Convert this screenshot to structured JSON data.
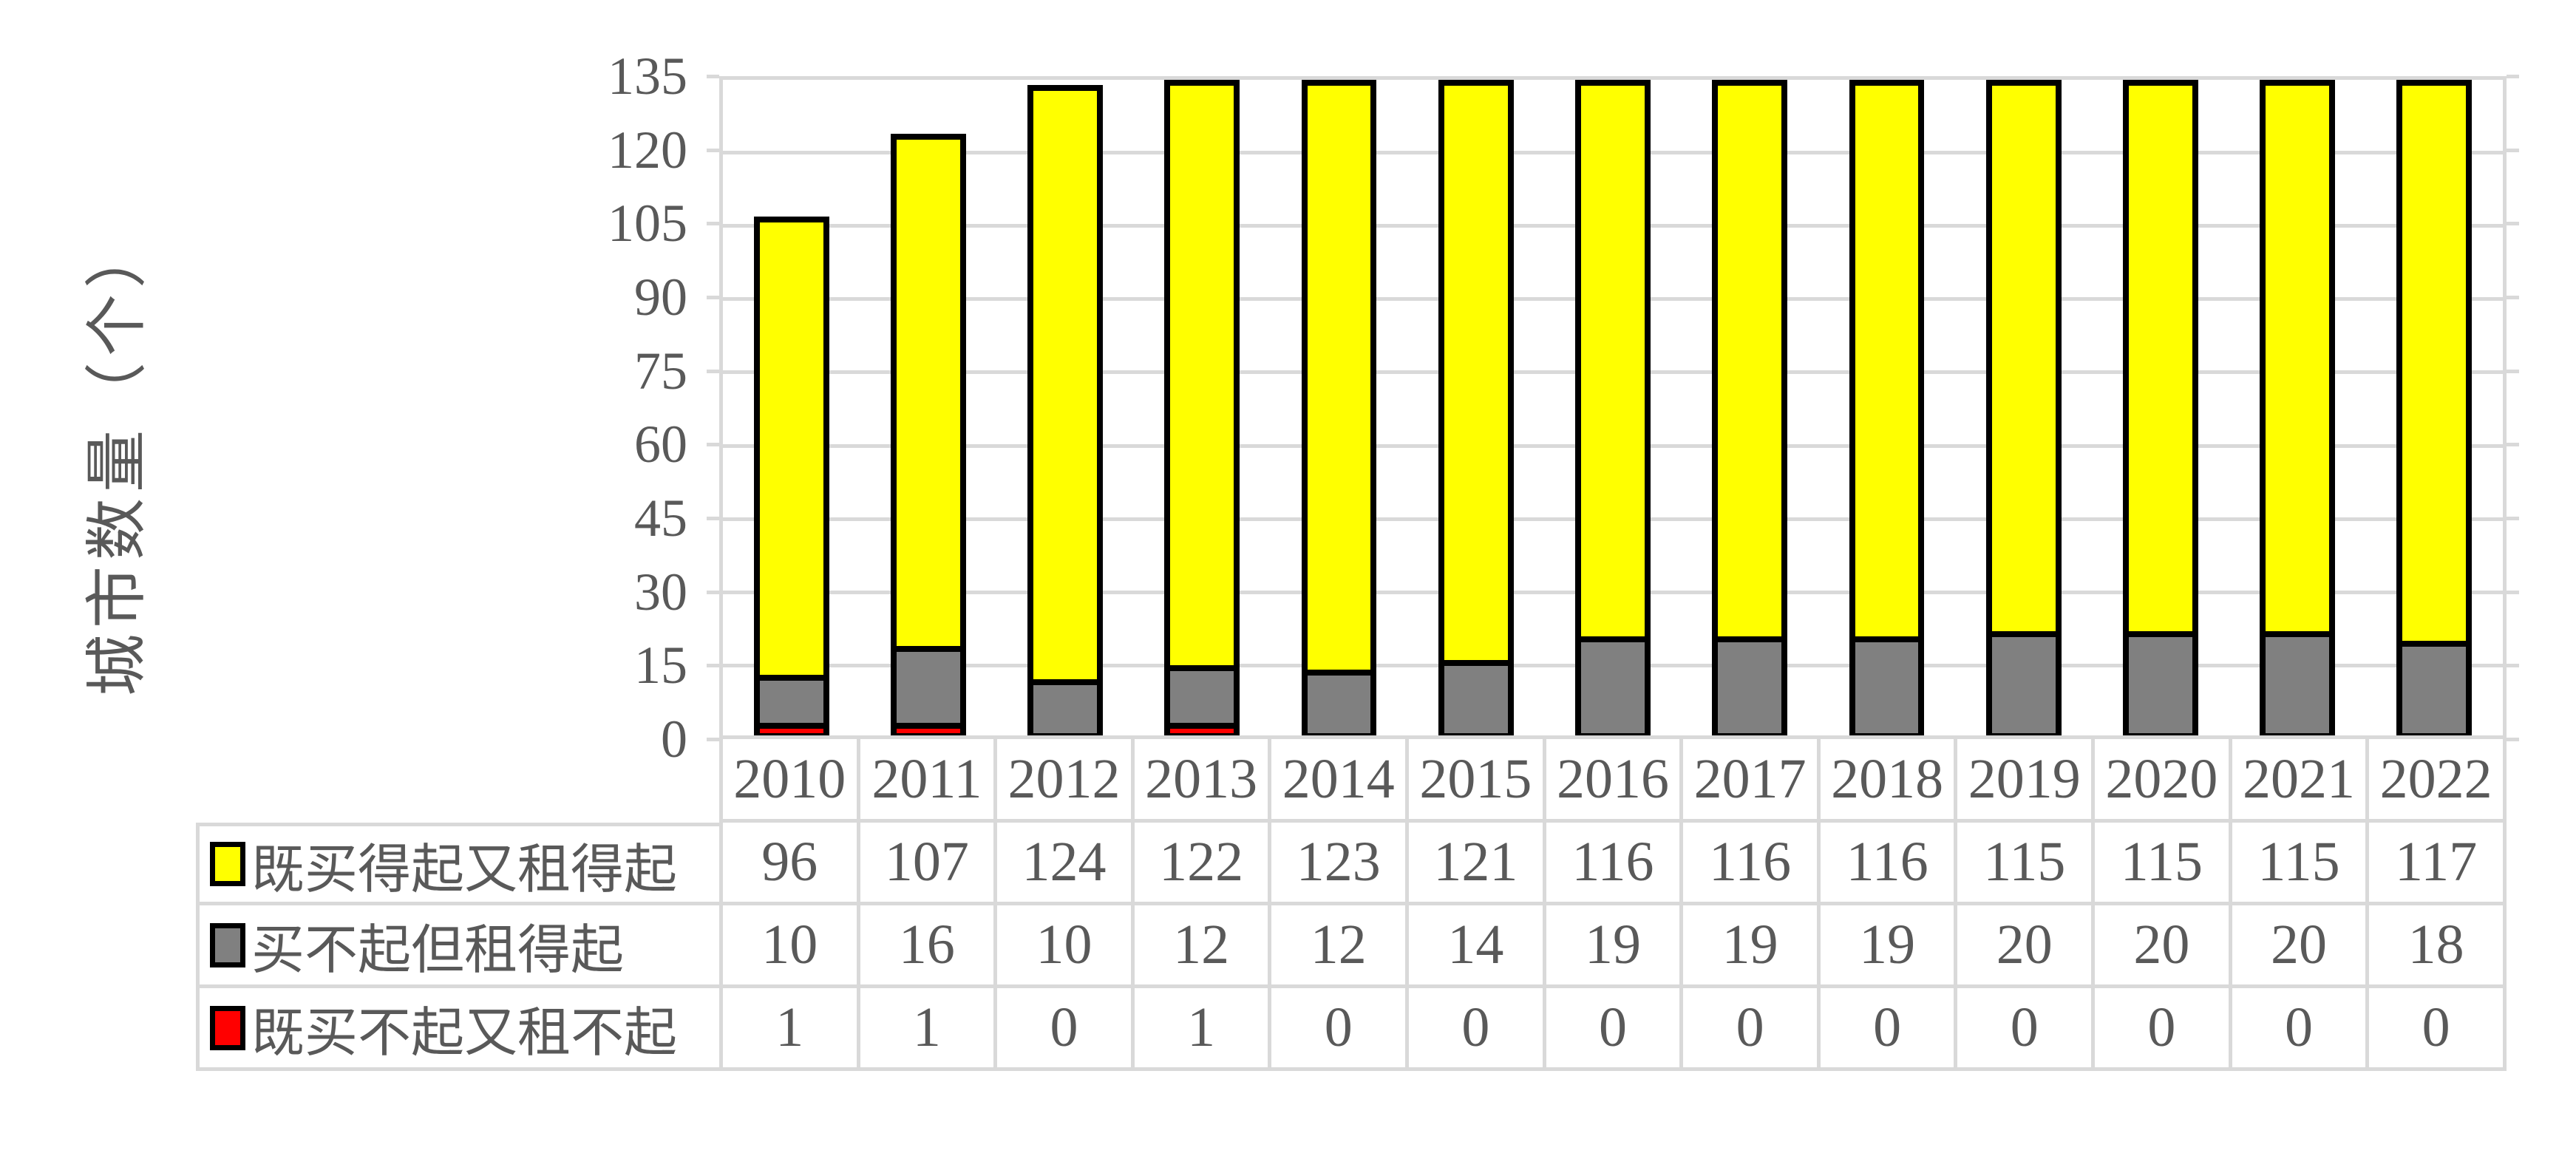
{
  "colors": {
    "text": "#595959",
    "grid": "#D9D9D9",
    "bar_border": "#000000",
    "background": "#FFFFFF"
  },
  "chart_data": {
    "type": "bar",
    "stacked": true,
    "title": "",
    "xlabel": "",
    "ylabel": "城市数量（个）",
    "ylim": [
      0,
      135
    ],
    "ytick_step": 15,
    "yticks": [
      0,
      15,
      30,
      45,
      60,
      75,
      90,
      105,
      120,
      135
    ],
    "grid": "horizontal",
    "legend_position": "table-left-of-rows",
    "categories": [
      "2010",
      "2011",
      "2012",
      "2013",
      "2014",
      "2015",
      "2016",
      "2017",
      "2018",
      "2019",
      "2020",
      "2021",
      "2022"
    ],
    "series": [
      {
        "name": "既买得起又租得起",
        "color": "#FFFF00",
        "values": [
          96,
          107,
          124,
          122,
          123,
          121,
          116,
          116,
          116,
          115,
          115,
          115,
          117
        ]
      },
      {
        "name": "买不起但租得起",
        "color": "#808080",
        "values": [
          10,
          16,
          10,
          12,
          12,
          14,
          19,
          19,
          19,
          20,
          20,
          20,
          18
        ]
      },
      {
        "name": "既买不起又租不起",
        "color": "#FF0000",
        "values": [
          1,
          1,
          0,
          1,
          0,
          0,
          0,
          0,
          0,
          0,
          0,
          0,
          0
        ]
      }
    ],
    "stack_order_bottom_to_top": [
      2,
      1,
      0
    ]
  }
}
